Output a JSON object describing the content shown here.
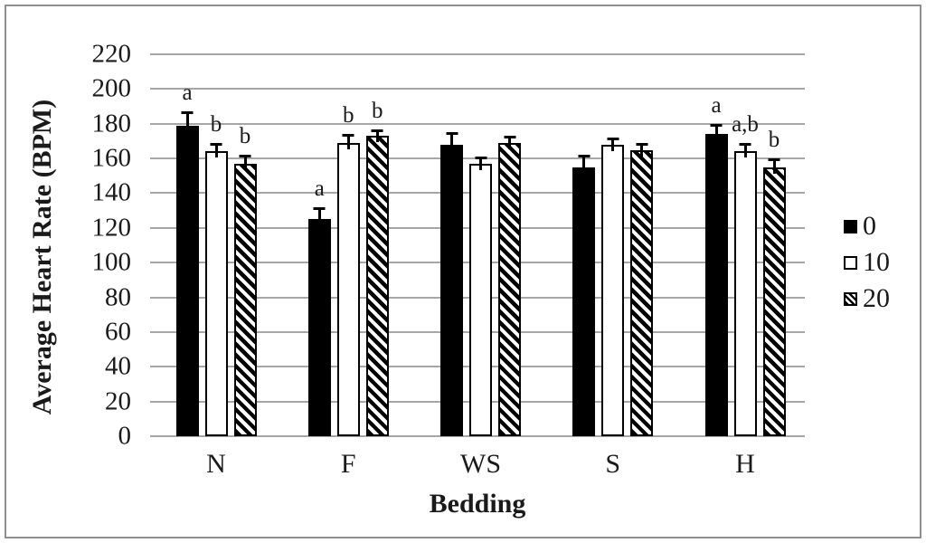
{
  "figure": {
    "background": "#ffffff",
    "border_color": "#8f8f8f"
  },
  "chart_data": {
    "type": "bar",
    "title": "",
    "ylabel": "Average Heart Rate (BPM)",
    "xlabel": "Bedding",
    "ylim": [
      0,
      220
    ],
    "yticks": [
      0,
      20,
      40,
      60,
      80,
      100,
      120,
      140,
      160,
      180,
      200,
      220
    ],
    "categories": [
      "N",
      "F",
      "WS",
      "S",
      "H"
    ],
    "series": [
      {
        "name": "0",
        "fill": "solid-black",
        "values": [
          179,
          125,
          168,
          155,
          174
        ],
        "errors": [
          8,
          7,
          7,
          7,
          6
        ],
        "sig_letters": [
          "a",
          "a",
          "",
          "",
          "a"
        ]
      },
      {
        "name": "10",
        "fill": "white-outline",
        "values": [
          164,
          169,
          157,
          168,
          164
        ],
        "errors": [
          6,
          6,
          5,
          5,
          6
        ],
        "sig_letters": [
          "b",
          "b",
          "",
          "",
          "a,b"
        ]
      },
      {
        "name": "20",
        "fill": "diagonal-hatch",
        "values": [
          157,
          173,
          169,
          165,
          155
        ],
        "errors": [
          6,
          5,
          5,
          5,
          6
        ],
        "sig_letters": [
          "b",
          "b",
          "",
          "",
          "b"
        ]
      }
    ],
    "legend": [
      "0",
      "10",
      "20"
    ],
    "legend_position": "right",
    "grid": true,
    "error_bars": "upper-only",
    "colors": {
      "bar": "#000000",
      "gridline": "#a6a6a6",
      "text": "#1a1a1a"
    }
  }
}
